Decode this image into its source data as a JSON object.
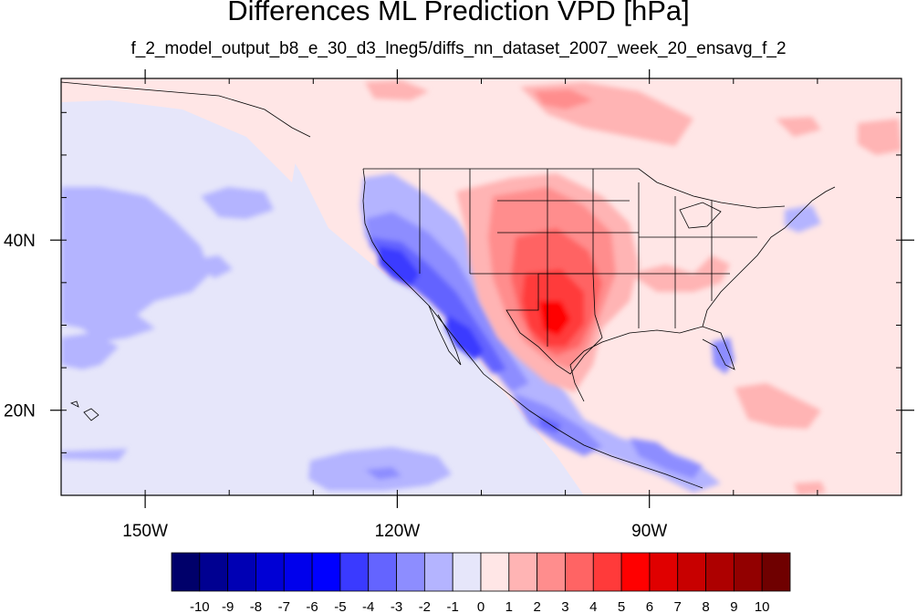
{
  "title": "Differences ML Prediction VPD [hPa]",
  "subtitle": "f_2_model_output_b8_e_30_d3_lneg5/diffs_nn_dataset_2007_week_20_ensavg_f_2",
  "map": {
    "lon_range": [
      -160,
      -60
    ],
    "lat_range": [
      10,
      59
    ],
    "x_ticks": [
      {
        "lon": -150,
        "label": "150W"
      },
      {
        "lon": -120,
        "label": "120W"
      },
      {
        "lon": -90,
        "label": "90W"
      }
    ],
    "y_ticks": [
      {
        "lat": 40,
        "label": "40N"
      },
      {
        "lat": 20,
        "label": "20N"
      }
    ],
    "background_color": "#e6e6fa"
  },
  "colorbar": {
    "labels": [
      "-10",
      "-9",
      "-8",
      "-7",
      "-6",
      "-5",
      "-4",
      "-3",
      "-2",
      "-1",
      "0",
      "1",
      "2",
      "3",
      "4",
      "5",
      "6",
      "7",
      "8",
      "9",
      "10"
    ],
    "colors": [
      "#00006a",
      "#000091",
      "#0000b4",
      "#0000d5",
      "#0000ec",
      "#0000ff",
      "#3a3aff",
      "#6464ff",
      "#8d8dff",
      "#b4b4ff",
      "#e6e6fa",
      "#ffe6e6",
      "#ffb4b4",
      "#ff8d8d",
      "#ff6464",
      "#ff3a3a",
      "#ff0000",
      "#e00000",
      "#c80000",
      "#ad0000",
      "#920000",
      "#6f0000"
    ]
  }
}
